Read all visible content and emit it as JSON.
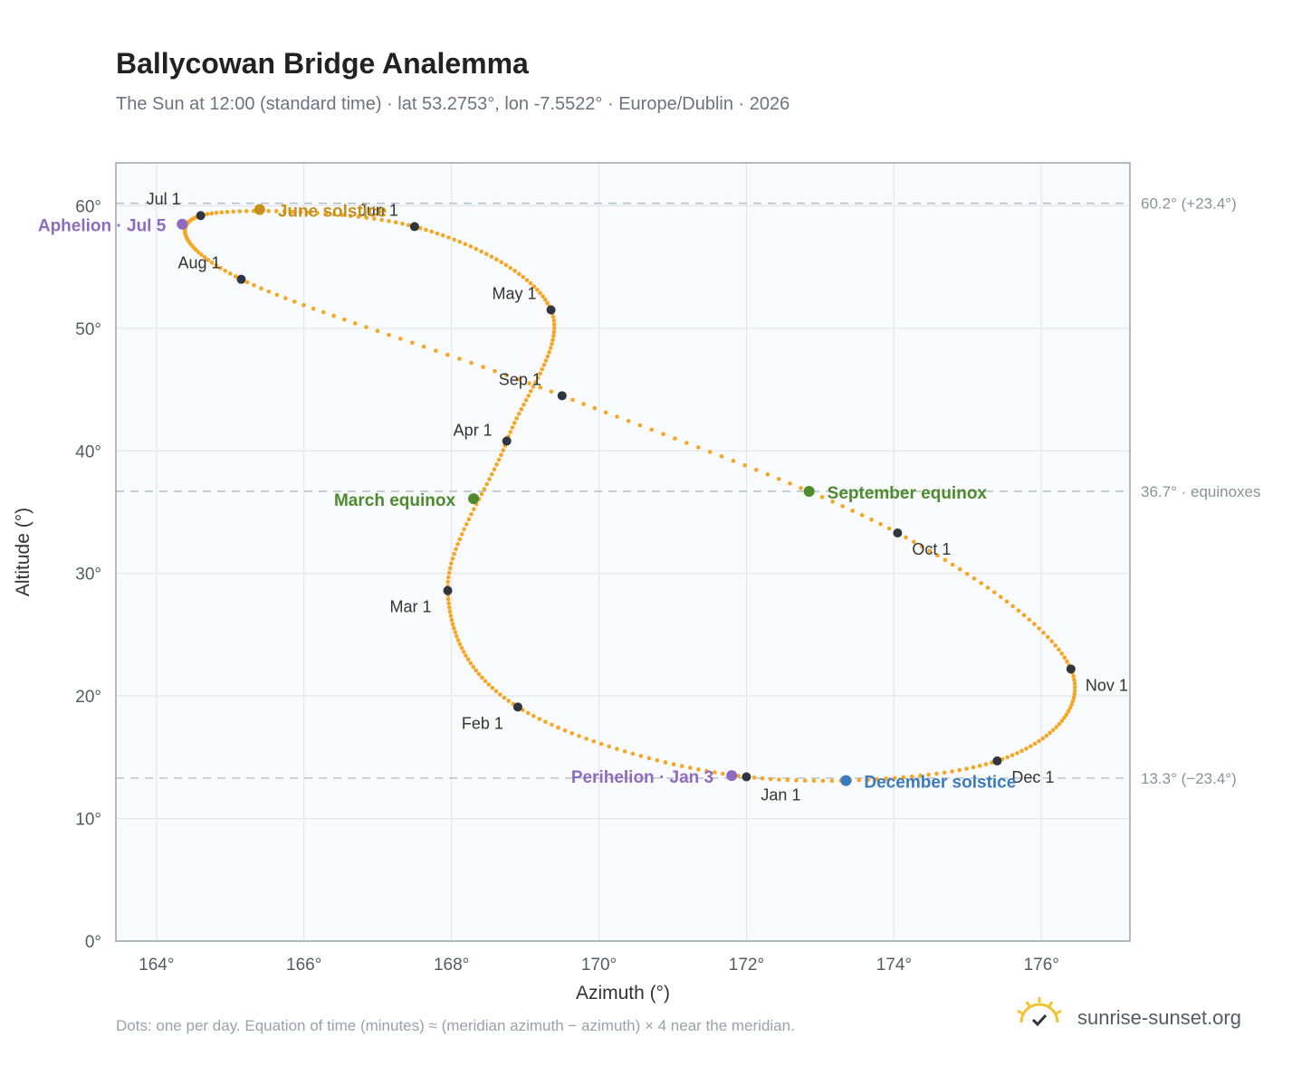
{
  "header": {
    "title": "Ballycowan Bridge Analemma",
    "subtitle": "The Sun at 12:00 (standard time) · lat 53.2753°, lon -7.5522° · Europe/Dublin · 2026"
  },
  "footer": {
    "note": "Dots: one per day. Equation of time (minutes) ≈ (meridian azimuth − azimuth) × 4 near the meridian.",
    "brand": "sunrise-sunset.org"
  },
  "colors": {
    "curve": "#f5a623",
    "month_marker": "#2f3640",
    "aphelion": "#8e6bbf",
    "perihelion": "#8e6bbf",
    "june_solstice": "#c8901a",
    "december_solstice": "#3a7abf",
    "equinox": "#4e8a2e",
    "reference_line": "#b8c2cc",
    "grid": "#e3e7ec",
    "plot_bg": "#f8fafc",
    "plot_border": "#9aa4b1"
  },
  "chart_data": {
    "type": "scatter",
    "xlabel": "Azimuth (°)",
    "ylabel": "Altitude (°)",
    "xlim": [
      163.45,
      177.2
    ],
    "ylim": [
      0,
      63.5
    ],
    "x_ticks": [
      164,
      166,
      168,
      170,
      172,
      174,
      176
    ],
    "x_tick_labels": [
      "164°",
      "166°",
      "168°",
      "170°",
      "172°",
      "174°",
      "176°"
    ],
    "y_ticks": [
      0,
      10,
      20,
      30,
      40,
      50,
      60
    ],
    "y_tick_labels": [
      "0°",
      "10°",
      "20°",
      "30°",
      "40°",
      "50°",
      "60°"
    ],
    "grid": true,
    "path_keypoints": [
      {
        "az": 172.0,
        "alt": 13.4
      },
      {
        "az": 168.9,
        "alt": 19.1
      },
      {
        "az": 167.95,
        "alt": 28.6
      },
      {
        "az": 168.75,
        "alt": 40.8
      },
      {
        "az": 169.35,
        "alt": 51.5
      },
      {
        "az": 167.5,
        "alt": 58.3
      },
      {
        "az": 164.6,
        "alt": 59.2
      },
      {
        "az": 165.15,
        "alt": 54.0
      },
      {
        "az": 169.5,
        "alt": 44.5
      },
      {
        "az": 174.05,
        "alt": 33.3
      },
      {
        "az": 176.4,
        "alt": 22.2
      },
      {
        "az": 175.4,
        "alt": 14.7
      }
    ],
    "month_markers": [
      {
        "label": "Jan 1",
        "az": 172.0,
        "alt": 13.4
      },
      {
        "label": "Feb 1",
        "az": 168.9,
        "alt": 19.1
      },
      {
        "label": "Mar 1",
        "az": 167.95,
        "alt": 28.6
      },
      {
        "label": "Apr 1",
        "az": 168.75,
        "alt": 40.8
      },
      {
        "label": "May 1",
        "az": 169.35,
        "alt": 51.5
      },
      {
        "label": "Jun 1",
        "az": 167.5,
        "alt": 58.3
      },
      {
        "label": "Jul 1",
        "az": 164.6,
        "alt": 59.2
      },
      {
        "label": "Aug 1",
        "az": 165.15,
        "alt": 54.0
      },
      {
        "label": "Sep 1",
        "az": 169.5,
        "alt": 44.5
      },
      {
        "label": "Oct 1",
        "az": 174.05,
        "alt": 33.3
      },
      {
        "label": "Nov 1",
        "az": 176.4,
        "alt": 22.2
      },
      {
        "label": "Dec 1",
        "az": 175.4,
        "alt": 14.7
      }
    ],
    "events": [
      {
        "label": "June solstice",
        "az": 165.4,
        "alt": 59.7,
        "color_key": "june_solstice"
      },
      {
        "label": "December solstice",
        "az": 173.35,
        "alt": 13.1,
        "color_key": "december_solstice"
      },
      {
        "label": "March equinox",
        "az": 168.3,
        "alt": 36.1,
        "color_key": "equinox"
      },
      {
        "label": "September equinox",
        "az": 172.85,
        "alt": 36.7,
        "color_key": "equinox"
      },
      {
        "label": "Aphelion · Jul 5",
        "az": 164.35,
        "alt": 58.5,
        "color_key": "aphelion"
      },
      {
        "label": "Perihelion · Jan 3",
        "az": 171.8,
        "alt": 13.5,
        "color_key": "perihelion"
      }
    ],
    "reference_lines": [
      {
        "alt": 60.2,
        "label": "60.2° (+23.4°)"
      },
      {
        "alt": 36.7,
        "label": "36.7° · equinoxes"
      },
      {
        "alt": 13.3,
        "label": "13.3° (−23.4°)"
      }
    ]
  }
}
